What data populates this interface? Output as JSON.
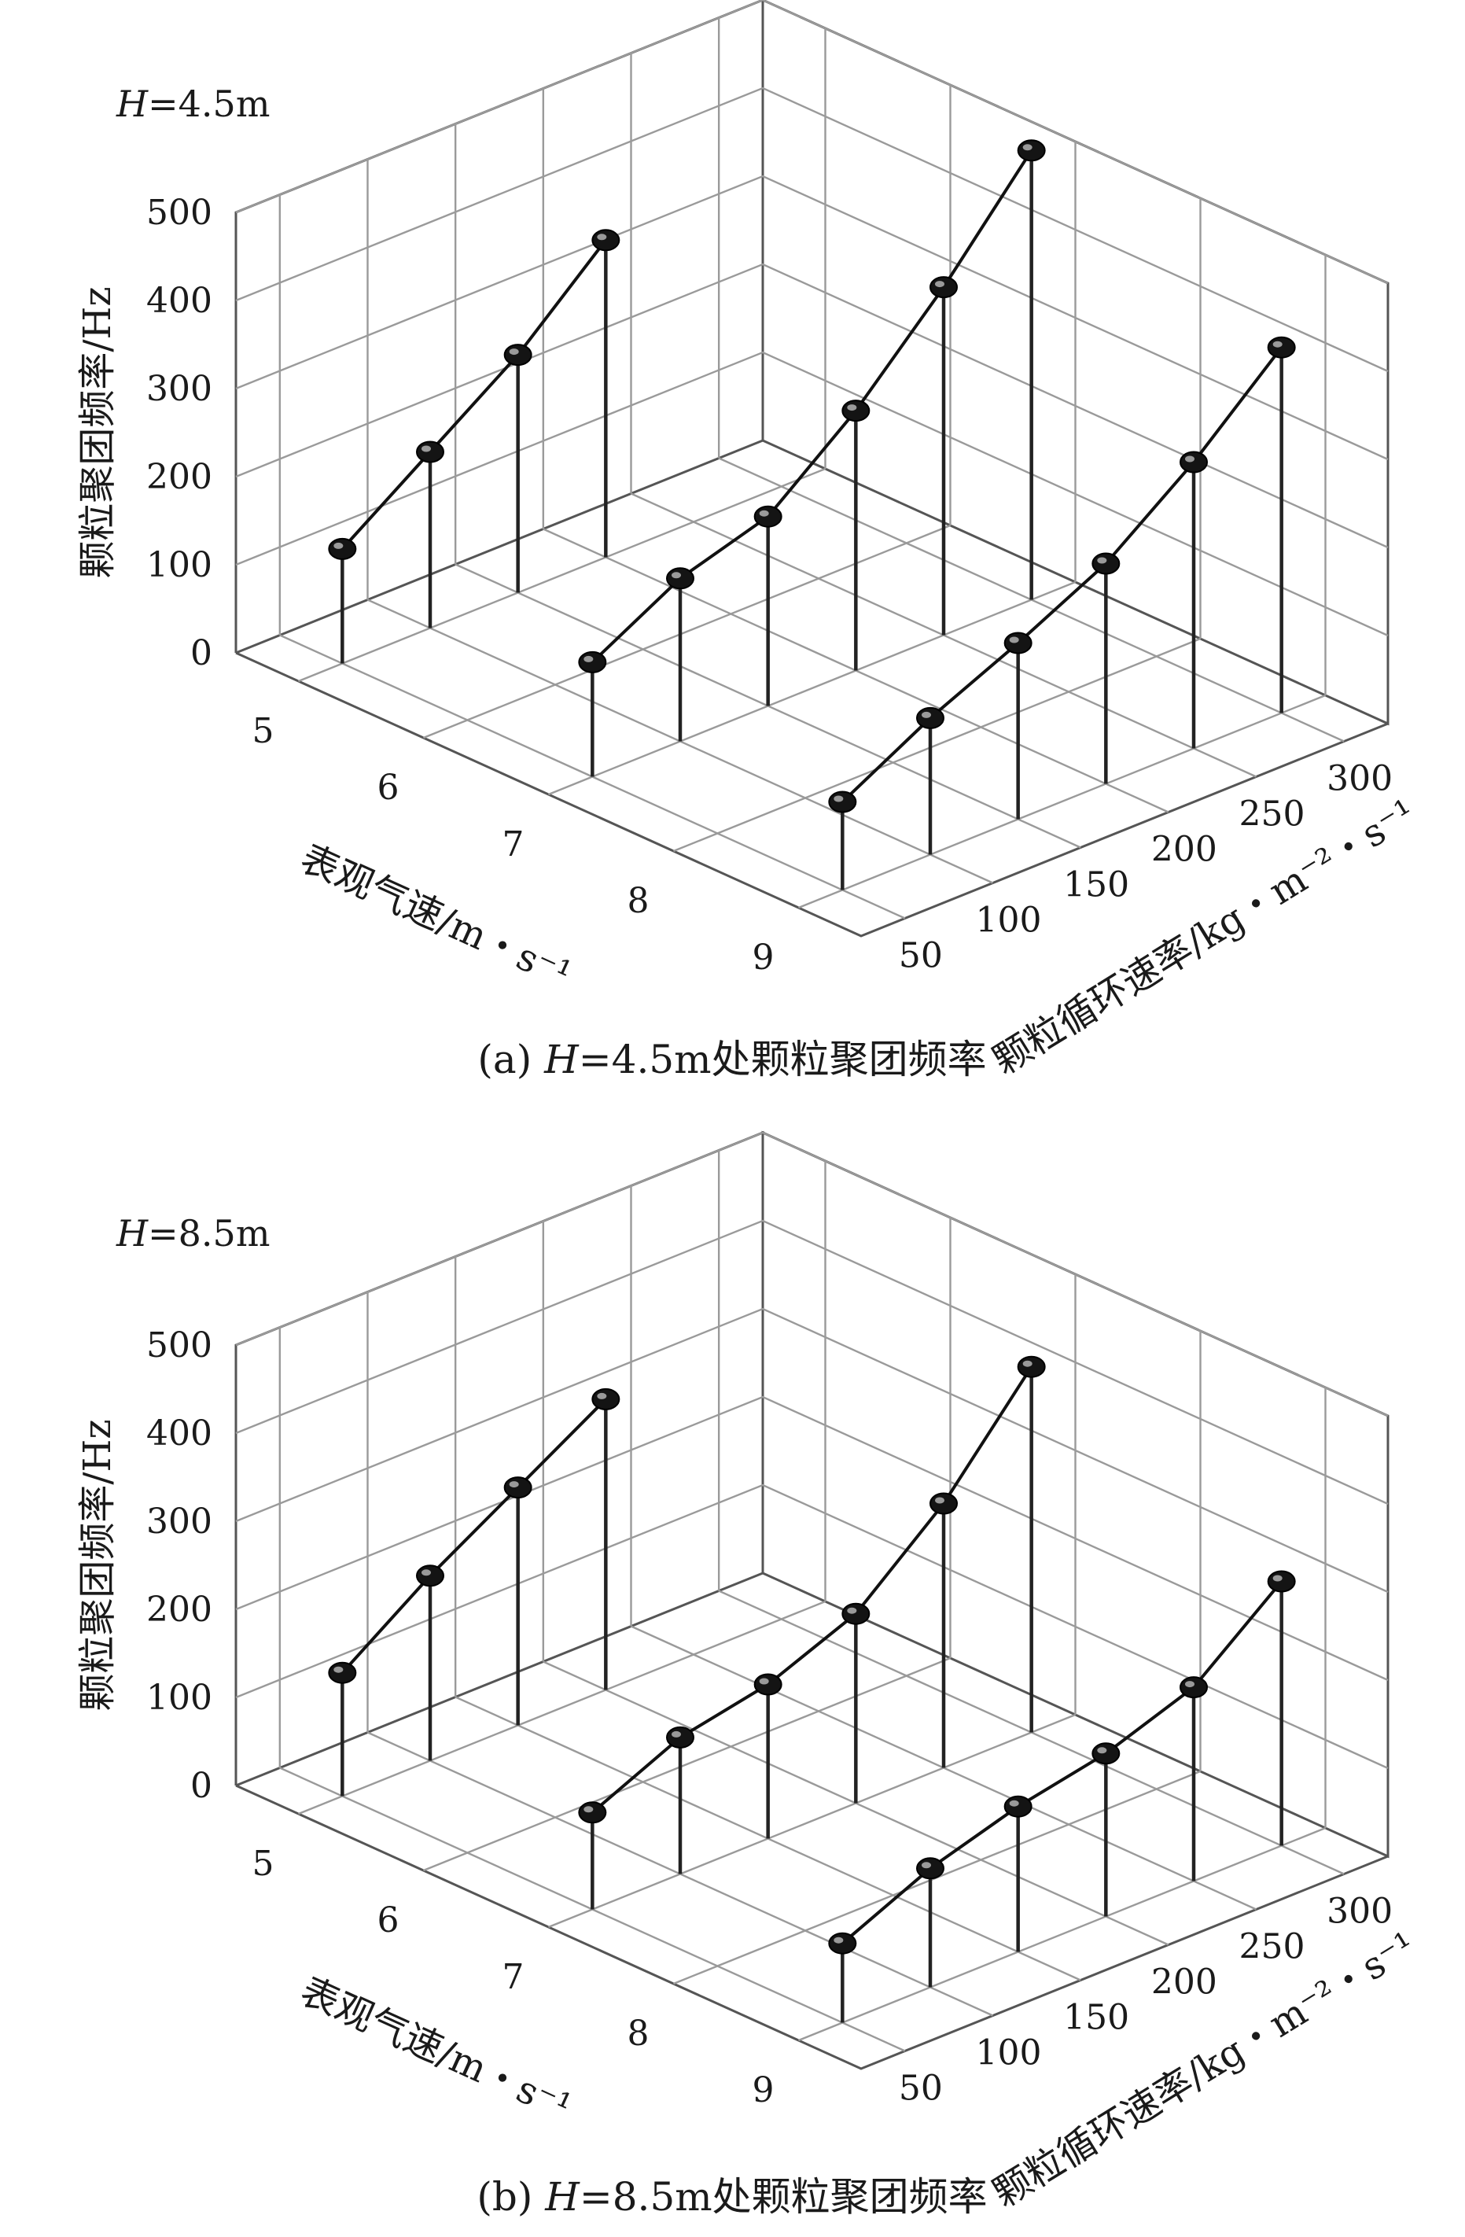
{
  "chart_data": [
    {
      "type": "scatter",
      "subtype": "3d-drop-line",
      "panel_label": "H=4.5m",
      "caption": "(a) H=4.5m处颗粒聚团频率",
      "xlabel": "表观气速/m・s⁻¹",
      "ylabel": "颗粒循环速率/kg・m⁻²・s⁻¹",
      "zlabel": "颗粒聚团频率/Hz",
      "x_ticks": [
        "5",
        "6",
        "7",
        "8",
        "9"
      ],
      "y_ticks": [
        "50",
        "100",
        "150",
        "200",
        "250",
        "300"
      ],
      "z_ticks": [
        "0",
        "100",
        "200",
        "300",
        "400",
        "500"
      ],
      "xlim": [
        4.5,
        9.5
      ],
      "ylim": [
        25,
        325
      ],
      "zlim": [
        0,
        500
      ],
      "series": [
        {
          "x": 5,
          "y": [
            50,
            100,
            150,
            200
          ],
          "z": [
            130,
            200,
            270,
            360
          ]
        },
        {
          "x": 7,
          "y": [
            50,
            100,
            150,
            200,
            250,
            300
          ],
          "z": [
            130,
            185,
            215,
            295,
            395,
            510
          ]
        },
        {
          "x": 9,
          "y": [
            50,
            100,
            150,
            200,
            250,
            300
          ],
          "z": [
            100,
            155,
            200,
            250,
            325,
            415
          ]
        }
      ]
    },
    {
      "type": "scatter",
      "subtype": "3d-drop-line",
      "panel_label": "H=8.5m",
      "caption": "(b) H=8.5m处颗粒聚团频率",
      "xlabel": "表观气速/m・s⁻¹",
      "ylabel": "颗粒循环速率/kg・m⁻²・s⁻¹",
      "zlabel": "颗粒聚团频率/Hz",
      "x_ticks": [
        "5",
        "6",
        "7",
        "8",
        "9"
      ],
      "y_ticks": [
        "50",
        "100",
        "150",
        "200",
        "250",
        "300"
      ],
      "z_ticks": [
        "0",
        "100",
        "200",
        "300",
        "400",
        "500"
      ],
      "xlim": [
        4.5,
        9.5
      ],
      "ylim": [
        25,
        325
      ],
      "zlim": [
        0,
        500
      ],
      "series": [
        {
          "x": 5,
          "y": [
            50,
            100,
            150,
            200
          ],
          "z": [
            140,
            210,
            270,
            330
          ]
        },
        {
          "x": 7,
          "y": [
            50,
            100,
            150,
            200,
            250,
            300
          ],
          "z": [
            110,
            155,
            175,
            215,
            300,
            415
          ]
        },
        {
          "x": 9,
          "y": [
            50,
            100,
            150,
            200,
            250,
            300
          ],
          "z": [
            90,
            135,
            165,
            185,
            220,
            300
          ]
        }
      ]
    }
  ]
}
